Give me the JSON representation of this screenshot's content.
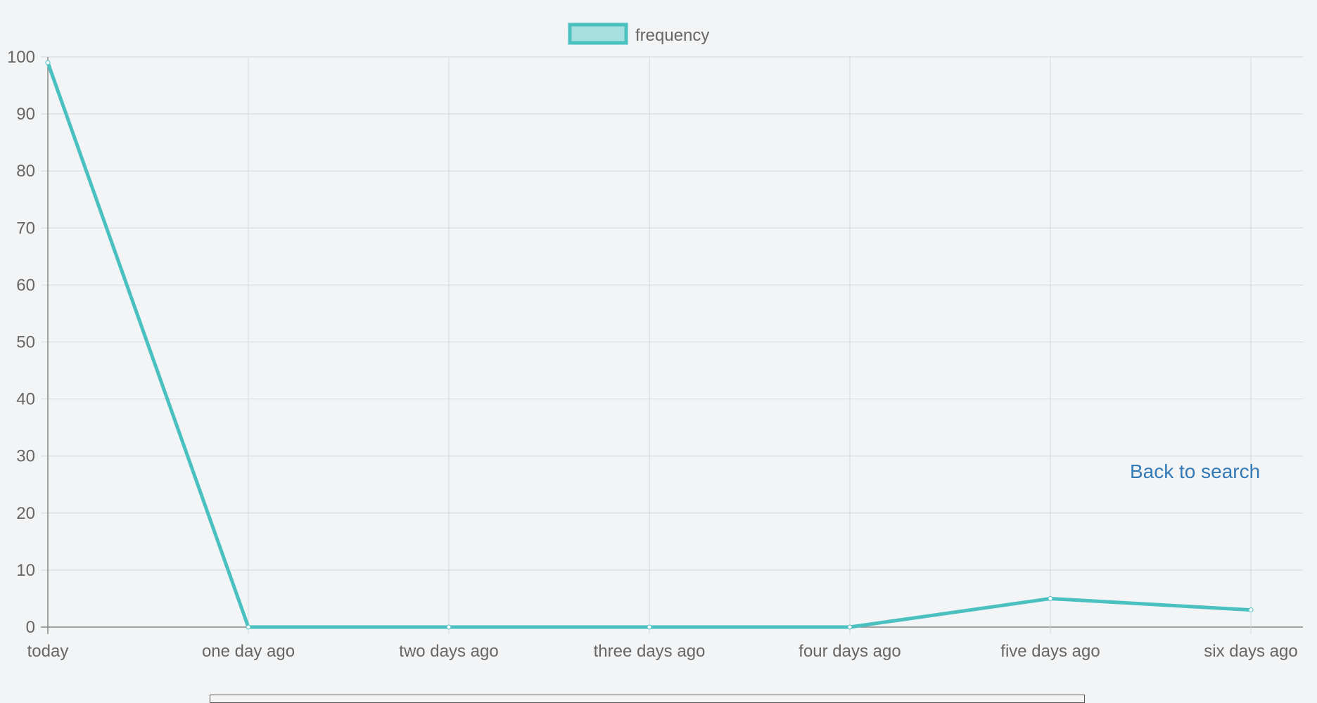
{
  "back_link": {
    "label": "Back to search"
  },
  "chart_data": {
    "type": "line",
    "categories": [
      "today",
      "one day ago",
      "two days ago",
      "three days ago",
      "four days ago",
      "five days ago",
      "six days ago"
    ],
    "series": [
      {
        "name": "frequency",
        "values": [
          99,
          0,
          0,
          0,
          0,
          5,
          3
        ],
        "color": "#4bc0c0",
        "fill": "#a5dfdf"
      }
    ],
    "title": "",
    "xlabel": "",
    "ylabel": "",
    "ylim": [
      0,
      100
    ],
    "yticks": [
      0,
      10,
      20,
      30,
      40,
      50,
      60,
      70,
      80,
      90,
      100
    ],
    "grid": true,
    "legend": "top-center"
  }
}
